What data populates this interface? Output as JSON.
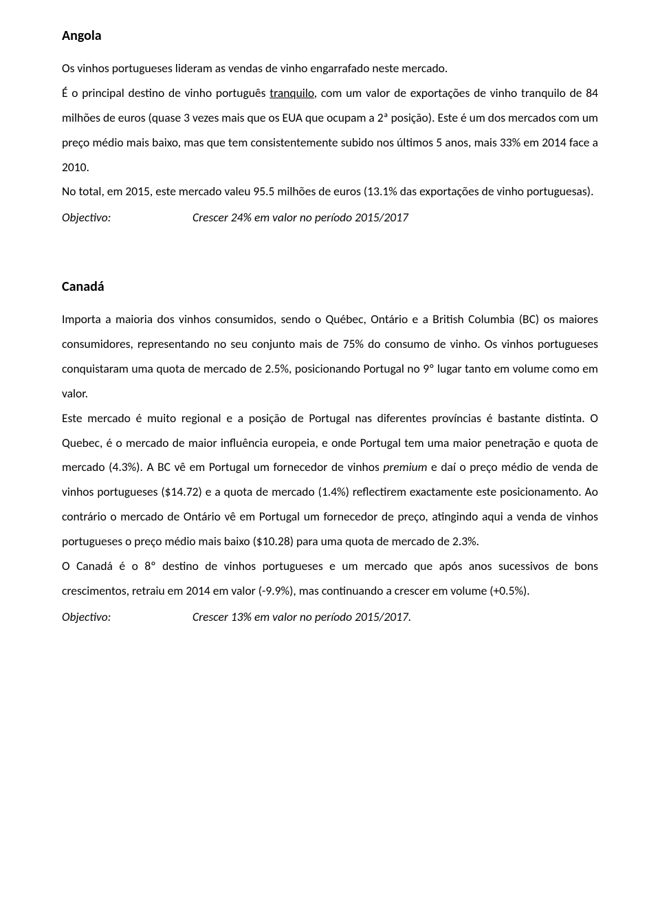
{
  "document": {
    "text_color": "#000000",
    "background_color": "#ffffff",
    "font_family": "Calibri",
    "body_font_size": 17.5,
    "heading_font_size": 20,
    "line_height": 2.05
  },
  "sections": {
    "angola": {
      "heading": "Angola",
      "p1_a": "Os vinhos portugueses lideram as vendas de vinho engarrafado neste mercado.",
      "p2_a": "É o principal destino de vinho português ",
      "p2_underlined": "tranquilo",
      "p2_b": ", com um valor de exportações de vinho tranquilo de 84 milhões de euros (quase 3 vezes mais que os EUA que ocupam a 2ª posição). Este é um dos mercados com um preço médio mais baixo, mas que tem consistentemente subido nos últimos 5 anos, mais 33% em 2014 face a 2010.",
      "p3_a": "No total, em 2015, este mercado valeu 95.5 milhões de euros (13.1% das exportações de vinho portuguesas).",
      "objective_label": "Objectivo:",
      "objective_text": "Crescer 24% em valor no período 2015/2017"
    },
    "canada": {
      "heading": "Canadá",
      "p1_a": "Importa a maioria dos vinhos consumidos, sendo o Québec, Ontário e a British Columbia (BC) os maiores consumidores, representando no seu conjunto mais de 75% do consumo de vinho. Os vinhos portugueses conquistaram uma quota de mercado de 2.5%, posicionando Portugal no 9º lugar tanto em volume como em valor.",
      "p2_a": "Este mercado é muito regional e a posição de Portugal nas diferentes províncias é bastante distinta. O Quebec, é o mercado de maior influência europeia, e onde Portugal tem uma maior penetração e quota de mercado (4.3%). A BC vê em Portugal um fornecedor de vinhos ",
      "p2_em": "premium",
      "p2_b": " e daí o preço médio de venda de vinhos portugueses ($14.72) e a quota de mercado (1.4%) reflectirem exactamente este posicionamento. Ao contrário o mercado de Ontário vê em Portugal um fornecedor de preço, atingindo aqui a venda de vinhos portugueses o preço médio mais baixo ($10.28) para uma quota de mercado de 2.3%.",
      "p3_a": "O Canadá é o 8º destino de vinhos portugueses e um mercado que após anos sucessivos de bons crescimentos, retraiu em 2014 em valor (-9.9%), mas continuando a crescer em volume (+0.5%).",
      "objective_label": "Objectivo:",
      "objective_text": "Crescer 13% em valor no período 2015/2017."
    }
  }
}
